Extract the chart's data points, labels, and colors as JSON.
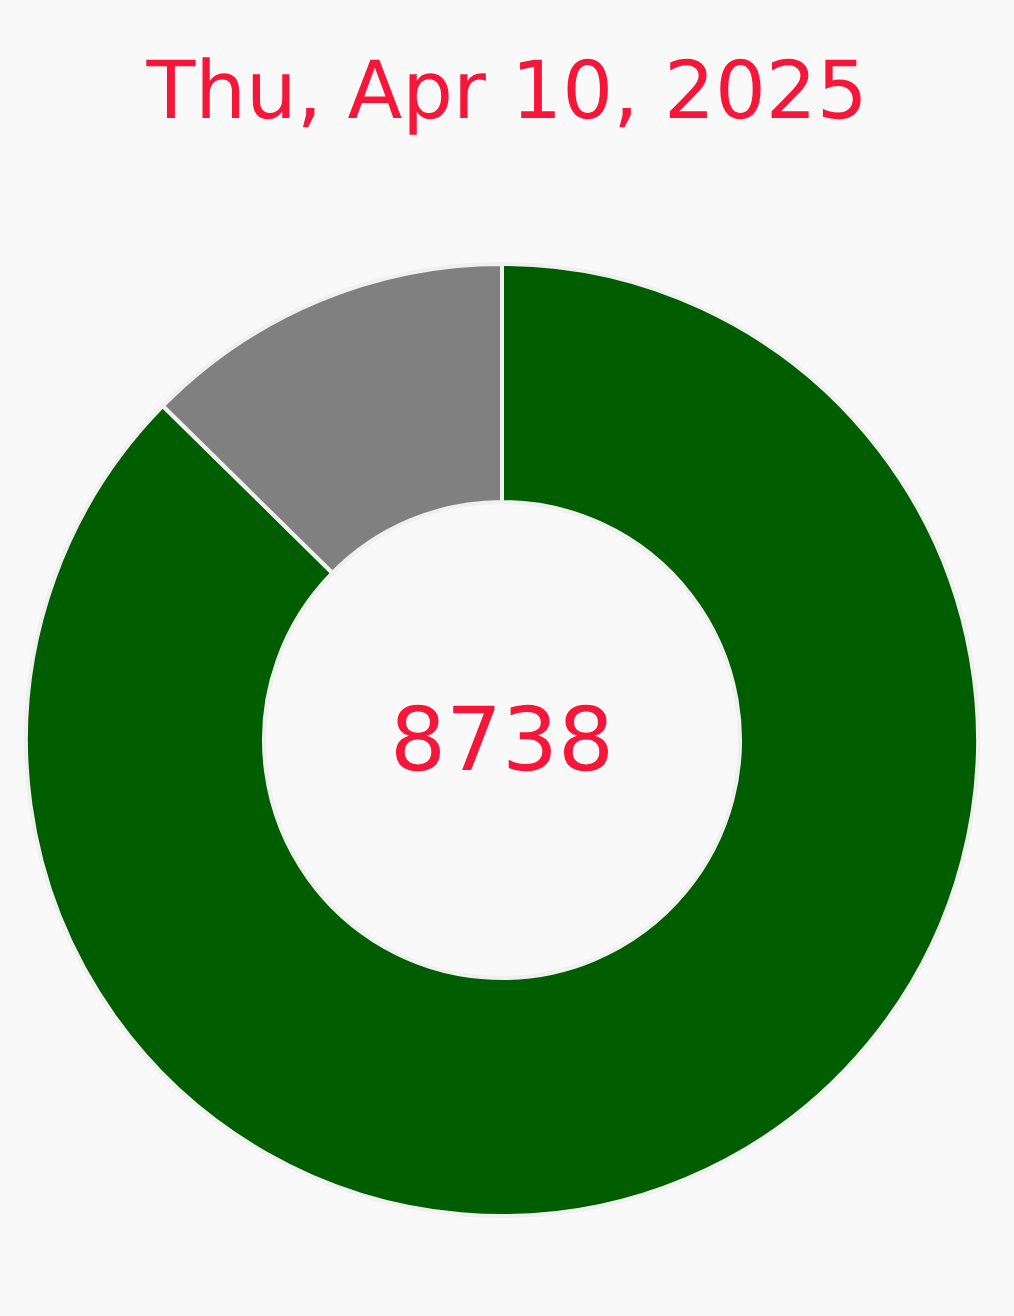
{
  "chart_data": {
    "type": "donut",
    "title": "Thu, Apr 10, 2025",
    "categories": [
      null,
      null
    ],
    "values": [
      87.38,
      12.62
    ],
    "colors": [
      "#005e00",
      "#808080"
    ],
    "annotations": [
      "8738"
    ],
    "legend": false
  }
}
